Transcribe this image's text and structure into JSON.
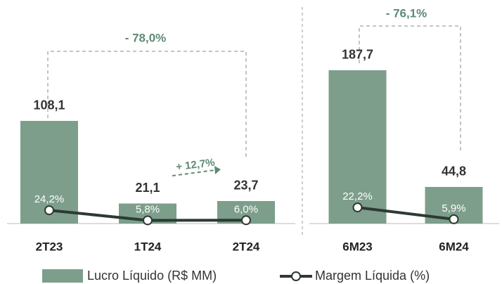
{
  "chart_data": [
    {
      "type": "bar",
      "categories": [
        "2T23",
        "1T24",
        "2T24"
      ],
      "series": [
        {
          "name": "Lucro Líquido (R$ MM)",
          "color": "#7d9e8b",
          "values": [
            108.1,
            21.1,
            23.7
          ],
          "value_labels": [
            "108,1",
            "21,1",
            "23,7"
          ]
        },
        {
          "name": "Margem Líquida (%)",
          "color": "#2d3a33",
          "axis": "y2",
          "values": [
            24.2,
            5.8,
            6.0
          ],
          "value_labels": [
            "24,2%",
            "5,8%",
            "6,0%"
          ]
        }
      ],
      "ylim": [
        0,
        191
      ],
      "y2lim": [
        0,
        330
      ],
      "annotations": [
        "- 78,0%",
        "+ 12,7%"
      ]
    },
    {
      "type": "bar",
      "categories": [
        "6M23",
        "6M24"
      ],
      "series": [
        {
          "color": "#7d9e8b",
          "values": [
            187.7,
            44.8
          ],
          "value_labels": [
            "187,7",
            "44,8"
          ]
        },
        {
          "color": "#2d3a33",
          "axis": "y2",
          "values": [
            22.2,
            5.9
          ],
          "value_labels": [
            "22,2%",
            "5,9%"
          ]
        }
      ],
      "ylim": [
        0,
        222
      ],
      "y2lim": [
        0,
        250
      ],
      "annotations": [
        "- 76,1%"
      ]
    }
  ]
}
